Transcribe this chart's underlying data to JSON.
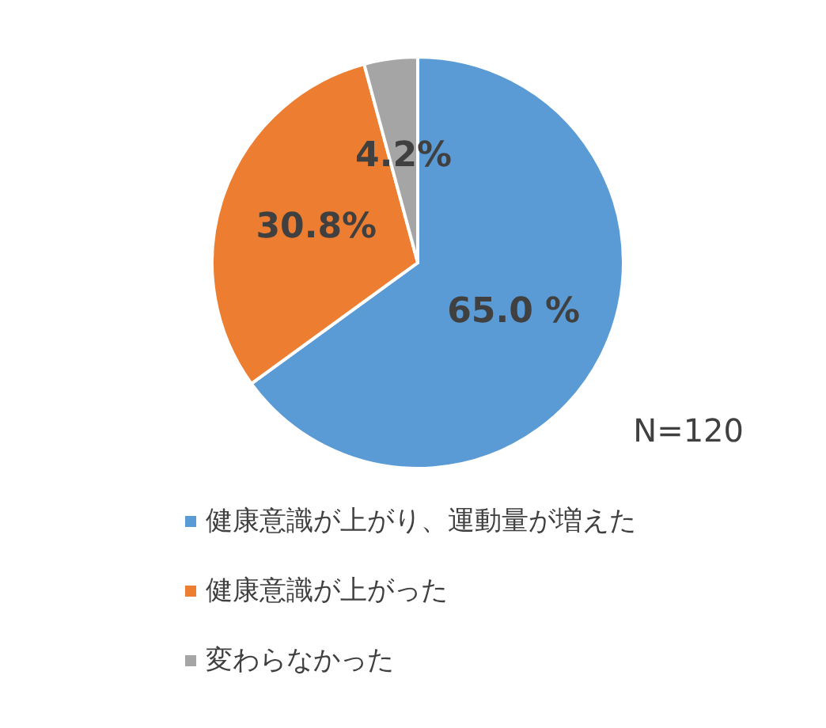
{
  "chart_data": {
    "type": "pie",
    "categories": [
      "健康意識が上がり、運動量が増えた",
      "健康意識が上がった",
      "変わらなかった"
    ],
    "values": [
      65.0,
      30.8,
      4.2
    ],
    "colors": [
      "#5b9bd5",
      "#ed7d31",
      "#a5a5a5"
    ],
    "value_labels": [
      "65.0 %",
      "30.8%",
      "4.2%"
    ],
    "annotations": [
      "N=120"
    ],
    "legend": "bottom"
  }
}
